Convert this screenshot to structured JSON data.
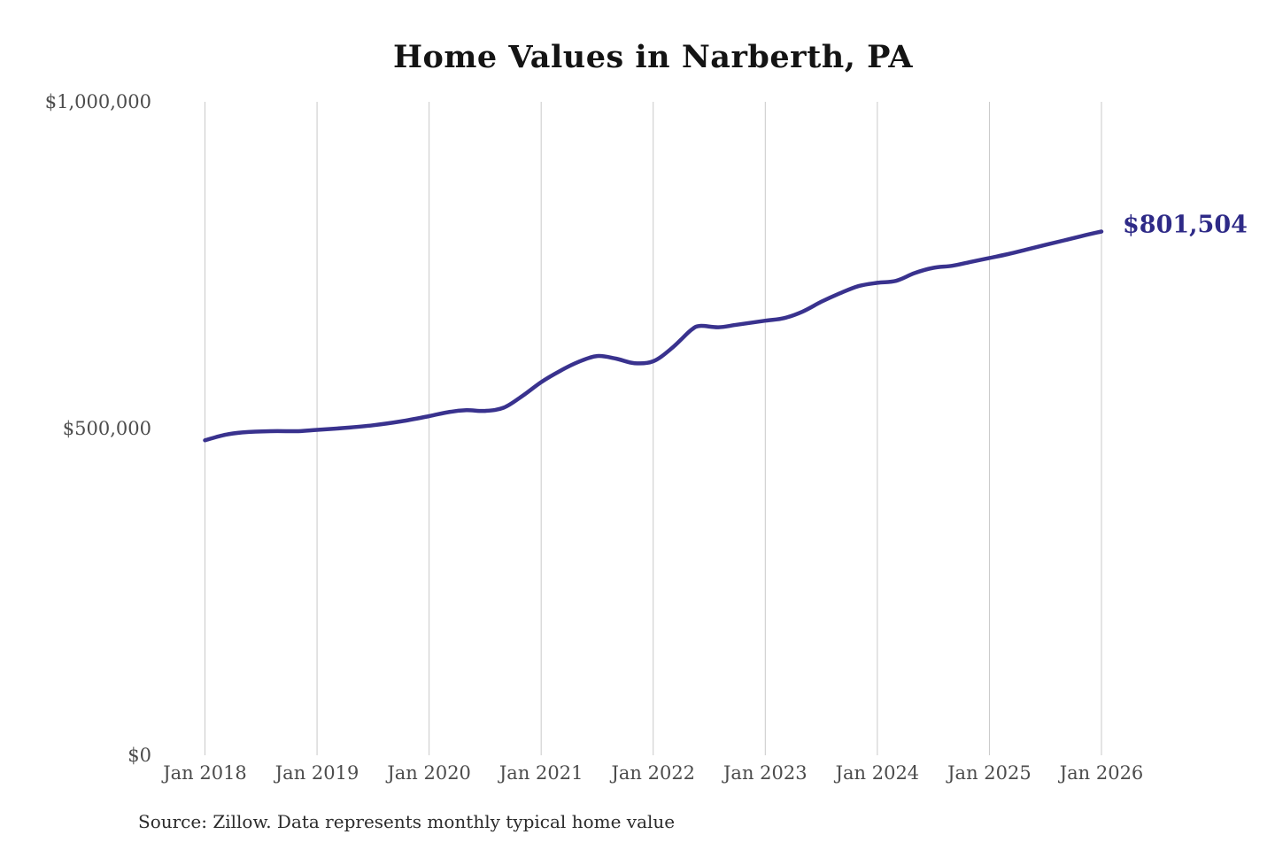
{
  "chart_data": {
    "type": "line",
    "title": "Home Values in Narberth, PA",
    "source_note": "Source: Zillow. Data represents monthly typical home value",
    "legend": "none",
    "grid": "vertical-only",
    "end_label": "$801,504",
    "end_value": 801504,
    "x_axis": {
      "tick_labels": [
        "Jan 2018",
        "Jan 2019",
        "Jan 2020",
        "Jan 2021",
        "Jan 2022",
        "Jan 2023",
        "Jan 2024",
        "Jan 2025",
        "Jan 2026"
      ],
      "range_months": [
        "2018-01",
        "2026-01"
      ]
    },
    "y_axis": {
      "ticks": [
        {
          "value": 0,
          "label": "$0"
        },
        {
          "value": 500000,
          "label": "$500,000"
        },
        {
          "value": 1000000,
          "label": "$1,000,000"
        }
      ],
      "range": [
        0,
        1000000
      ]
    },
    "series": [
      {
        "name": "Monthly typical home value",
        "color": "#39328e",
        "points": [
          {
            "date": "2018-01",
            "value": 482000
          },
          {
            "date": "2018-03",
            "value": 490000
          },
          {
            "date": "2018-05",
            "value": 494000
          },
          {
            "date": "2018-08",
            "value": 496000
          },
          {
            "date": "2018-11",
            "value": 496000
          },
          {
            "date": "2019-01",
            "value": 498000
          },
          {
            "date": "2019-04",
            "value": 501000
          },
          {
            "date": "2019-07",
            "value": 505000
          },
          {
            "date": "2019-10",
            "value": 511000
          },
          {
            "date": "2020-01",
            "value": 519000
          },
          {
            "date": "2020-03",
            "value": 525000
          },
          {
            "date": "2020-05",
            "value": 528000
          },
          {
            "date": "2020-07",
            "value": 527000
          },
          {
            "date": "2020-09",
            "value": 532000
          },
          {
            "date": "2020-11",
            "value": 550000
          },
          {
            "date": "2021-01",
            "value": 571000
          },
          {
            "date": "2021-03",
            "value": 588000
          },
          {
            "date": "2021-05",
            "value": 602000
          },
          {
            "date": "2021-07",
            "value": 611000
          },
          {
            "date": "2021-09",
            "value": 607000
          },
          {
            "date": "2021-11",
            "value": 600000
          },
          {
            "date": "2022-01",
            "value": 603000
          },
          {
            "date": "2022-03",
            "value": 623000
          },
          {
            "date": "2022-05",
            "value": 650000
          },
          {
            "date": "2022-06",
            "value": 657000
          },
          {
            "date": "2022-08",
            "value": 655000
          },
          {
            "date": "2022-10",
            "value": 659000
          },
          {
            "date": "2023-01",
            "value": 665000
          },
          {
            "date": "2023-03",
            "value": 669000
          },
          {
            "date": "2023-05",
            "value": 679000
          },
          {
            "date": "2023-07",
            "value": 694000
          },
          {
            "date": "2023-09",
            "value": 707000
          },
          {
            "date": "2023-11",
            "value": 718000
          },
          {
            "date": "2024-01",
            "value": 723000
          },
          {
            "date": "2024-03",
            "value": 726000
          },
          {
            "date": "2024-05",
            "value": 738000
          },
          {
            "date": "2024-07",
            "value": 746000
          },
          {
            "date": "2024-09",
            "value": 749000
          },
          {
            "date": "2024-11",
            "value": 755000
          },
          {
            "date": "2025-01",
            "value": 761000
          },
          {
            "date": "2025-03",
            "value": 767000
          },
          {
            "date": "2025-05",
            "value": 774000
          },
          {
            "date": "2025-07",
            "value": 781000
          },
          {
            "date": "2025-09",
            "value": 788000
          },
          {
            "date": "2025-11",
            "value": 795000
          },
          {
            "date": "2026-01",
            "value": 801504
          }
        ]
      }
    ]
  },
  "style": {
    "line_color": "#39328e",
    "annotation_color": "#2e2a87",
    "grid_color": "#c9c9c9",
    "axis_label_color": "#4c4c4c",
    "title_color": "#141414",
    "source_color": "#2b2b2b",
    "background": "#ffffff"
  }
}
